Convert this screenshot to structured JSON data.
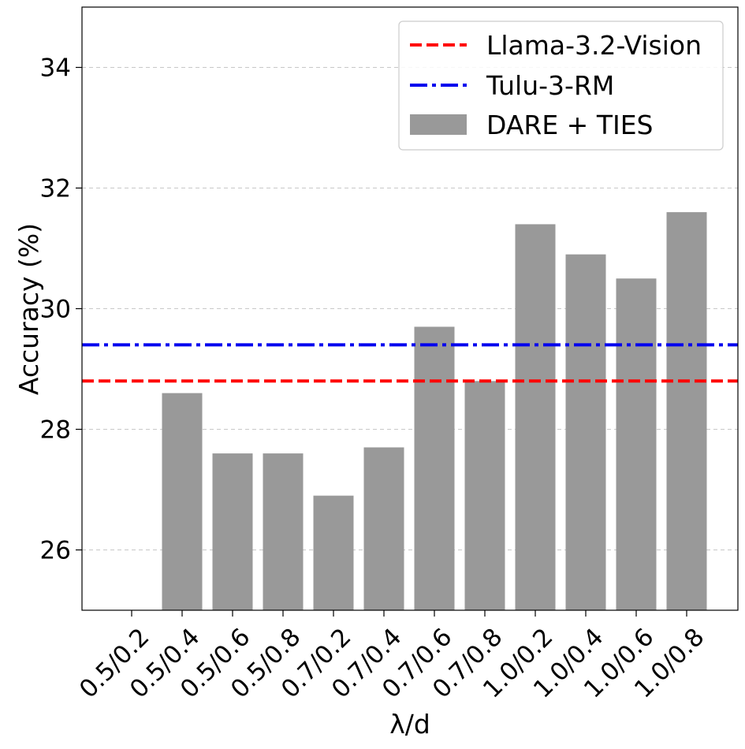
{
  "chart_data": {
    "type": "bar",
    "title": "",
    "xlabel": "λ/d",
    "ylabel": "Accuracy (%)",
    "ylim": [
      25,
      35
    ],
    "yticks": [
      26,
      28,
      30,
      32,
      34
    ],
    "grid": "y-dashed",
    "legend_position": "top-right",
    "categories": [
      "0.5/0.2",
      "0.5/0.4",
      "0.5/0.6",
      "0.5/0.8",
      "0.7/0.2",
      "0.7/0.4",
      "0.7/0.6",
      "0.7/0.8",
      "1.0/0.2",
      "1.0/0.4",
      "1.0/0.6",
      "1.0/0.8"
    ],
    "series": [
      {
        "name": "DARE + TIES",
        "color": "#999999",
        "values": [
          25.0,
          28.6,
          27.6,
          27.6,
          26.9,
          27.7,
          29.7,
          28.8,
          31.4,
          30.9,
          30.5,
          31.6
        ]
      }
    ],
    "reference_lines": [
      {
        "name": "Llama-3.2-Vision",
        "value": 28.8,
        "color": "#ff0000",
        "style": "dashed"
      },
      {
        "name": "Tulu-3-RM",
        "value": 29.4,
        "color": "#0000ee",
        "style": "dashdot"
      }
    ],
    "legend": [
      {
        "label": "Llama-3.2-Vision",
        "kind": "line",
        "color": "#ff0000",
        "style": "dashed"
      },
      {
        "label": "Tulu-3-RM",
        "kind": "line",
        "color": "#0000ee",
        "style": "dashdot"
      },
      {
        "label": "DARE + TIES",
        "kind": "patch",
        "color": "#999999"
      }
    ]
  }
}
